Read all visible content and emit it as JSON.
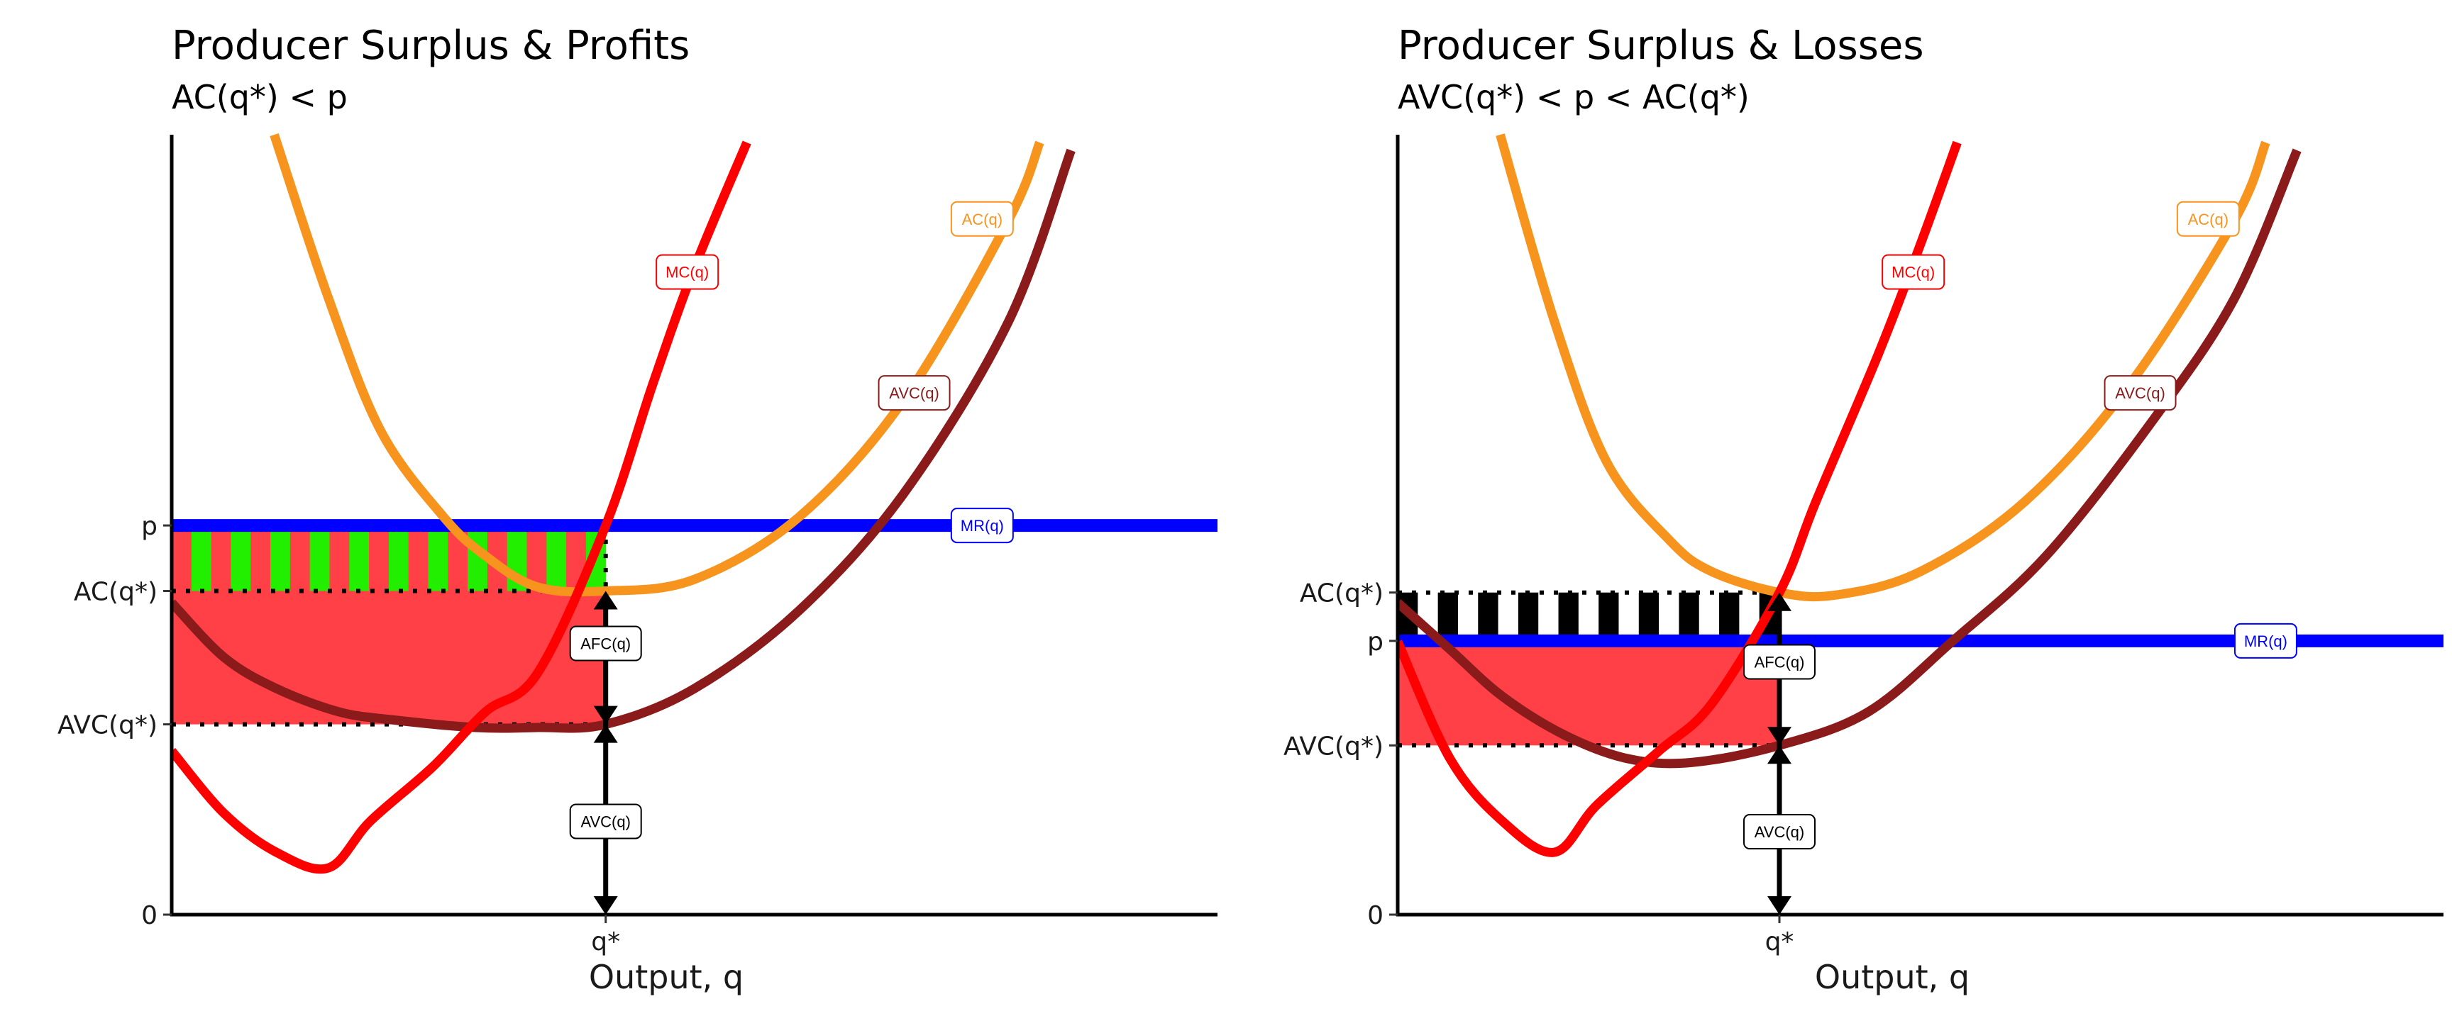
{
  "chart_data": [
    {
      "type": "line",
      "title": "Producer Surplus & Profits",
      "subtitle": "AC(q*) < p",
      "xlabel": "Output, q",
      "x_tick_labels": [
        "q*"
      ],
      "y_tick_labels": [
        "0",
        "AVC(q*)",
        "AC(q*)",
        "p"
      ],
      "xlim": [
        0,
        10
      ],
      "ylim": [
        0,
        10
      ],
      "q_star": 4.15,
      "price": 4.99,
      "ac_at_q_star": 4.15,
      "avc_at_q_star": 2.44,
      "colors": {
        "MC": "#ff0000",
        "AC": "#f7941d",
        "AVC": "#8b1a1a",
        "MR": "#0000ff",
        "loss_fill": "#ff4046",
        "profit_green": "#22ee00",
        "profit_red": "#ff4046"
      },
      "series": [
        {
          "name": "MC(q)",
          "label": "MC(q)",
          "color": "#ff0000",
          "x": [
            0.0,
            0.5,
            1.0,
            1.5,
            1.9,
            2.5,
            3.0,
            3.5,
            4.15,
            4.6,
            5.0,
            5.5
          ],
          "y": [
            2.1,
            1.3,
            0.8,
            0.6,
            1.2,
            1.9,
            2.6,
            3.1,
            4.99,
            6.8,
            8.3,
            9.9
          ]
        },
        {
          "name": "AC(q)",
          "label": "AC(q)",
          "color": "#f7941d",
          "x": [
            0.98,
            1.5,
            2.0,
            2.6,
            3.0,
            3.5,
            4.15,
            5.0,
            6.0,
            7.0,
            8.0,
            8.3
          ],
          "y": [
            10.0,
            7.9,
            6.2,
            5.1,
            4.6,
            4.2,
            4.15,
            4.3,
            5.1,
            6.6,
            8.9,
            9.9
          ]
        },
        {
          "name": "AVC(q)",
          "label": "AVC(q)",
          "color": "#8b1a1a",
          "x": [
            0.0,
            0.5,
            1.0,
            1.6,
            2.1,
            2.9,
            3.5,
            4.15,
            5.0,
            6.0,
            7.0,
            8.0,
            8.6
          ],
          "y": [
            4.0,
            3.3,
            2.9,
            2.6,
            2.5,
            2.4,
            2.4,
            2.44,
            2.9,
            3.9,
            5.4,
            7.6,
            9.8
          ]
        },
        {
          "name": "MR(q)",
          "label": "MR(q)",
          "color": "#0000ff",
          "x": [
            0,
            10
          ],
          "y": [
            4.99,
            4.99
          ]
        }
      ],
      "annotations": [
        "AFC(q)",
        "AVC(q)"
      ]
    },
    {
      "type": "line",
      "title": "Producer Surplus & Losses",
      "subtitle": "AVC(q*) < p < AC(q*)",
      "xlabel": "Output, q",
      "x_tick_labels": [
        "q*"
      ],
      "y_tick_labels": [
        "0",
        "AVC(q*)",
        "p",
        "AC(q*)"
      ],
      "xlim": [
        0,
        10
      ],
      "ylim": [
        0,
        10
      ],
      "q_star": 3.65,
      "price": 3.51,
      "ac_at_q_star": 4.13,
      "avc_at_q_star": 2.17,
      "colors": {
        "MC": "#ff0000",
        "AC": "#f7941d",
        "AVC": "#8b1a1a",
        "MR": "#0000ff",
        "loss_fill": "#ff4046",
        "loss_black": "#000000"
      },
      "series": [
        {
          "name": "MC(q)",
          "label": "MC(q)",
          "color": "#ff0000",
          "x": [
            0.0,
            0.5,
            1.0,
            1.5,
            1.9,
            2.5,
            3.0,
            3.65,
            4.0,
            4.6,
            5.0,
            5.35
          ],
          "y": [
            3.5,
            2.0,
            1.2,
            0.8,
            1.4,
            2.1,
            2.7,
            4.13,
            5.3,
            7.2,
            8.6,
            9.9
          ]
        },
        {
          "name": "AC(q)",
          "label": "AC(q)",
          "color": "#f7941d",
          "x": [
            0.98,
            1.5,
            2.0,
            2.6,
            3.0,
            3.65,
            4.2,
            5.0,
            6.0,
            7.0,
            8.0,
            8.3
          ],
          "y": [
            10.0,
            7.6,
            5.8,
            4.8,
            4.4,
            4.13,
            4.1,
            4.4,
            5.3,
            6.8,
            8.9,
            9.9
          ]
        },
        {
          "name": "AVC(q)",
          "label": "AVC(q)",
          "color": "#8b1a1a",
          "x": [
            0.0,
            0.5,
            1.0,
            1.6,
            2.2,
            2.8,
            3.65,
            4.5,
            5.3,
            6.2,
            7.2,
            8.0,
            8.6
          ],
          "y": [
            4.0,
            3.4,
            2.8,
            2.3,
            2.0,
            1.95,
            2.17,
            2.6,
            3.5,
            4.6,
            6.3,
            7.9,
            9.8
          ]
        },
        {
          "name": "MR(q)",
          "label": "MR(q)",
          "color": "#0000ff",
          "x": [
            0,
            10
          ],
          "y": [
            3.51,
            3.51
          ]
        }
      ],
      "annotations": [
        "AFC(q)",
        "AVC(q)"
      ]
    }
  ]
}
